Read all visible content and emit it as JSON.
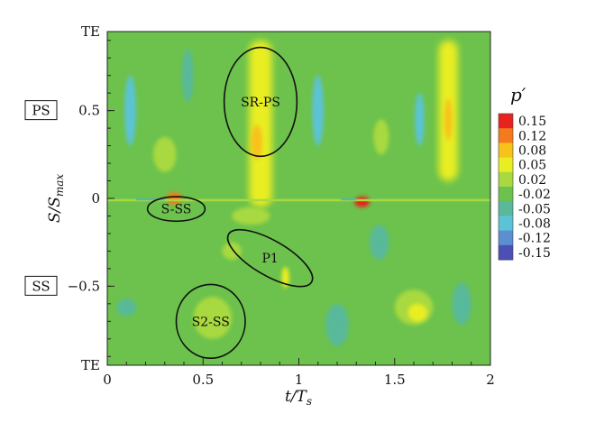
{
  "chart_data": {
    "type": "heatmap",
    "title": "",
    "xlabel": "t/T",
    "xlabel_sub": "s",
    "ylabel": "S/S",
    "ylabel_sub": "max",
    "xlim": [
      0,
      2
    ],
    "ylim": [
      -0.95,
      0.95
    ],
    "x_ticks": [
      {
        "value": 0,
        "label": "0"
      },
      {
        "value": 0.5,
        "label": "0.5"
      },
      {
        "value": 1,
        "label": "1"
      },
      {
        "value": 1.5,
        "label": "1.5"
      },
      {
        "value": 2,
        "label": "2"
      }
    ],
    "y_ticks": [
      {
        "value": 0.5,
        "label": "0.5"
      },
      {
        "value": 0,
        "label": "0"
      },
      {
        "value": -0.5,
        "label": "−0.5"
      }
    ],
    "y_edge_labels": [
      {
        "value": 0.95,
        "label": "TE"
      },
      {
        "value": -0.95,
        "label": "TE"
      }
    ],
    "side_labels": [
      {
        "value": 0.5,
        "label": "PS"
      },
      {
        "value": -0.5,
        "label": "SS"
      }
    ],
    "colorbar": {
      "title": "p′",
      "levels": [
        {
          "label": "0.15",
          "color": "#e8231f"
        },
        {
          "label": "0.12",
          "color": "#f57a1e"
        },
        {
          "label": "0.08",
          "color": "#f7c21a"
        },
        {
          "label": "0.05",
          "color": "#e9ee22"
        },
        {
          "label": "0.02",
          "color": "#a9d940"
        },
        {
          "label": "-0.02",
          "color": "#6cc24c"
        },
        {
          "label": "-0.05",
          "color": "#59b99a"
        },
        {
          "label": "-0.08",
          "color": "#5cc3d6"
        },
        {
          "label": "-0.12",
          "color": "#5b8fd2"
        },
        {
          "label": "-0.15",
          "color": "#4c4fb5"
        }
      ]
    },
    "background_color": "#6cc24c",
    "annotations": [
      {
        "label": "SR-PS",
        "x": 0.8,
        "y": 0.55,
        "rx": 0.19,
        "ry": 0.31
      },
      {
        "label": "S-SS",
        "x": 0.36,
        "y": -0.06,
        "rx": 0.15,
        "ry": 0.07
      },
      {
        "label": "P1",
        "x": 0.85,
        "y": -0.34,
        "rx": 0.25,
        "ry": 0.1,
        "rotation": 30
      },
      {
        "label": "S2-SS",
        "x": 0.54,
        "y": -0.7,
        "rx": 0.18,
        "ry": 0.21
      }
    ],
    "features": [
      {
        "kind": "band",
        "x": 0.8,
        "y0": -0.05,
        "y1": 0.9,
        "half_width": 0.06,
        "color": "#e9ee22"
      },
      {
        "kind": "band",
        "x": 1.78,
        "y0": 0.1,
        "y1": 0.9,
        "half_width": 0.05,
        "color": "#e9ee22"
      },
      {
        "kind": "blob",
        "x": 0.78,
        "y": 0.32,
        "rx": 0.03,
        "ry": 0.1,
        "color": "#f7c21a"
      },
      {
        "kind": "blob",
        "x": 1.78,
        "y": 0.45,
        "rx": 0.02,
        "ry": 0.12,
        "color": "#f7c21a"
      },
      {
        "kind": "blob",
        "x": 0.12,
        "y": 0.5,
        "rx": 0.03,
        "ry": 0.2,
        "color": "#5cc3d6"
      },
      {
        "kind": "blob",
        "x": 1.1,
        "y": 0.5,
        "rx": 0.03,
        "ry": 0.2,
        "color": "#5cc3d6"
      },
      {
        "kind": "blob",
        "x": 1.63,
        "y": 0.45,
        "rx": 0.025,
        "ry": 0.15,
        "color": "#5cc3d6"
      },
      {
        "kind": "blob",
        "x": 0.42,
        "y": 0.7,
        "rx": 0.03,
        "ry": 0.15,
        "color": "#59b99a"
      },
      {
        "kind": "blob",
        "x": 1.43,
        "y": 0.35,
        "rx": 0.04,
        "ry": 0.1,
        "color": "#a9d940"
      },
      {
        "kind": "blob",
        "x": 0.3,
        "y": 0.25,
        "rx": 0.06,
        "ry": 0.1,
        "color": "#a9d940"
      },
      {
        "kind": "blob",
        "x": 0.35,
        "y": 0.0,
        "rx": 0.04,
        "ry": 0.035,
        "color": "#f57a1e"
      },
      {
        "kind": "blob",
        "x": 1.33,
        "y": -0.02,
        "rx": 0.04,
        "ry": 0.03,
        "color": "#e8231f"
      },
      {
        "kind": "blob",
        "x": 0.93,
        "y": -0.45,
        "rx": 0.02,
        "ry": 0.06,
        "color": "#e9ee22"
      },
      {
        "kind": "blob",
        "x": 0.65,
        "y": -0.3,
        "rx": 0.05,
        "ry": 0.05,
        "color": "#a9d940"
      },
      {
        "kind": "blob",
        "x": 0.55,
        "y": -0.68,
        "rx": 0.1,
        "ry": 0.12,
        "color": "#a9d940"
      },
      {
        "kind": "blob",
        "x": 1.6,
        "y": -0.62,
        "rx": 0.1,
        "ry": 0.1,
        "color": "#a9d940"
      },
      {
        "kind": "blob",
        "x": 1.62,
        "y": -0.65,
        "rx": 0.05,
        "ry": 0.05,
        "color": "#e9ee22"
      },
      {
        "kind": "blob",
        "x": 0.75,
        "y": -0.1,
        "rx": 0.1,
        "ry": 0.05,
        "color": "#a9d940"
      },
      {
        "kind": "blob",
        "x": 1.42,
        "y": -0.25,
        "rx": 0.05,
        "ry": 0.1,
        "color": "#59b99a"
      },
      {
        "kind": "blob",
        "x": 0.1,
        "y": -0.62,
        "rx": 0.05,
        "ry": 0.05,
        "color": "#59b99a"
      },
      {
        "kind": "blob",
        "x": 1.2,
        "y": -0.72,
        "rx": 0.06,
        "ry": 0.12,
        "color": "#59b99a"
      },
      {
        "kind": "blob",
        "x": 1.85,
        "y": -0.6,
        "rx": 0.05,
        "ry": 0.12,
        "color": "#59b99a"
      },
      {
        "kind": "streak",
        "x0": 0.0,
        "x1": 2.0,
        "y": -0.01,
        "color": "#a9d940"
      },
      {
        "kind": "streak",
        "x0": 0.15,
        "x1": 0.3,
        "y": -0.005,
        "color": "#59b99a"
      },
      {
        "kind": "streak",
        "x0": 1.22,
        "x1": 1.3,
        "y": -0.005,
        "color": "#59b99a"
      }
    ]
  }
}
